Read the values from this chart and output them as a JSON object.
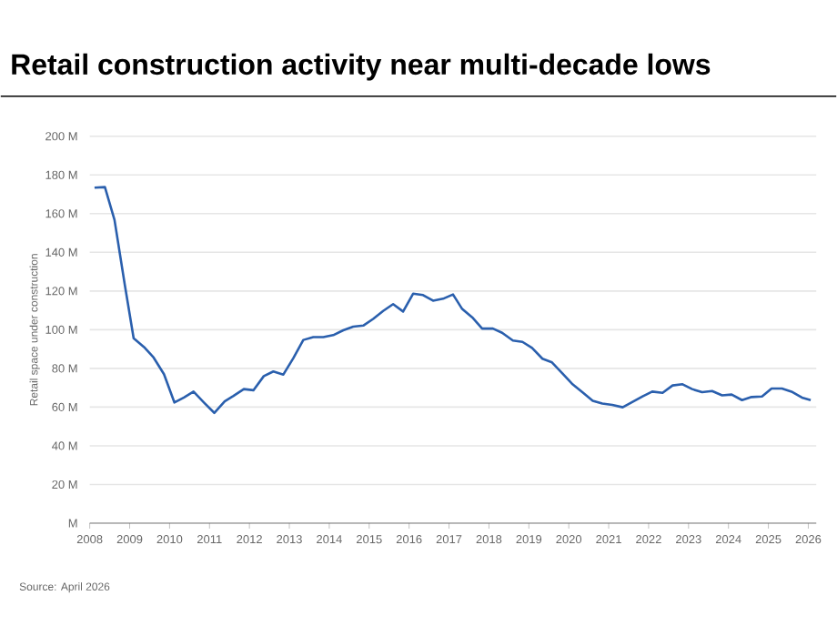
{
  "chart_data": {
    "type": "line",
    "title": "Retail construction activity near multi-decade lows",
    "ylabel": "Retail space under construction",
    "annotations": [
      "Source: April 2026"
    ],
    "x": [
      2008.12,
      2008.38,
      2008.62,
      2008.88,
      2009.1,
      2009.36,
      2009.6,
      2009.86,
      2010.12,
      2010.36,
      2010.6,
      2010.86,
      2011.12,
      2011.38,
      2011.6,
      2011.86,
      2012.1,
      2012.36,
      2012.6,
      2012.85,
      2013.1,
      2013.35,
      2013.6,
      2013.85,
      2014.1,
      2014.35,
      2014.6,
      2014.86,
      2015.1,
      2015.35,
      2015.6,
      2015.85,
      2016.1,
      2016.35,
      2016.6,
      2016.85,
      2017.1,
      2017.33,
      2017.6,
      2017.83,
      2018.1,
      2018.33,
      2018.6,
      2018.84,
      2019.08,
      2019.34,
      2019.58,
      2019.84,
      2020.08,
      2020.34,
      2020.6,
      2020.84,
      2021.09,
      2021.35,
      2021.6,
      2021.85,
      2022.09,
      2022.35,
      2022.6,
      2022.85,
      2023.09,
      2023.34,
      2023.59,
      2023.84,
      2024.08,
      2024.34,
      2024.58,
      2024.84,
      2025.08,
      2025.34,
      2025.58,
      2025.84,
      2026.06
    ],
    "series": [
      {
        "color": "#2a5fad",
        "values": [
          173.4,
          173.7,
          156.8,
          123,
          95.6,
          91,
          85.6,
          77,
          62.4,
          65,
          68,
          62.4,
          57,
          63,
          65.8,
          69.3,
          68.7,
          76,
          78.4,
          76.8,
          85.3,
          94.7,
          96.2,
          96.2,
          97.2,
          99.7,
          101.6,
          102.2,
          105.6,
          109.7,
          113.2,
          109.4,
          118.6,
          117.9,
          115,
          116,
          118.2,
          110.7,
          106,
          100.6,
          100.6,
          98.4,
          94.4,
          93.7,
          90.6,
          85,
          83.1,
          77.4,
          72.1,
          67.7,
          63.3,
          61.8,
          61.1,
          59.9,
          62.7,
          65.5,
          68,
          67.4,
          71.2,
          71.8,
          69.3,
          67.7,
          68.3,
          66.1,
          66.5,
          63.6,
          65.2,
          65.5,
          69.6,
          69.6,
          68,
          64.9,
          63.6
        ]
      }
    ],
    "xlim": [
      2008,
      2026.2
    ],
    "ylim": [
      0,
      200
    ],
    "xticks": [
      2008,
      2009,
      2010,
      2011,
      2012,
      2013,
      2014,
      2015,
      2016,
      2017,
      2018,
      2019,
      2020,
      2021,
      2022,
      2023,
      2024,
      2025,
      2026
    ],
    "yticks": [
      {
        "value": 0,
        "label": "M"
      },
      {
        "value": 20,
        "label": "20 M"
      },
      {
        "value": 40,
        "label": "40 M"
      },
      {
        "value": 60,
        "label": "60 M"
      },
      {
        "value": 80,
        "label": "80 M"
      },
      {
        "value": 100,
        "label": "100 M"
      },
      {
        "value": 120,
        "label": "120 M"
      },
      {
        "value": 140,
        "label": "140 M"
      },
      {
        "value": 160,
        "label": "160 M"
      },
      {
        "value": 180,
        "label": "180 M"
      },
      {
        "value": 200,
        "label": "200 M"
      }
    ],
    "grid": "y",
    "marker": "none",
    "line_style": "solid"
  }
}
